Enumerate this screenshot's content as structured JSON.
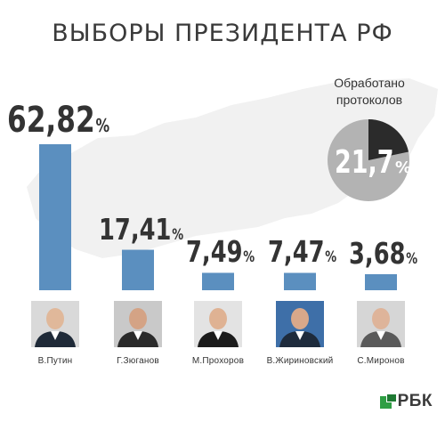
{
  "title": "ВЫБОРЫ ПРЕЗИДЕНТА РФ",
  "processed": {
    "label_line1": "Обработано",
    "label_line2": "протоколов",
    "value": 21.7,
    "value_text": "21,7",
    "percent_sign": "%"
  },
  "colors": {
    "bar": "#5b8fbf",
    "pie_done": "#2b2b2b",
    "pie_rest": "#b3b3b3",
    "map": "#f1f1f1"
  },
  "candidates": [
    {
      "name": "В.Путин",
      "value_text": "62,82",
      "photo_icon": "portrait-putin"
    },
    {
      "name": "Г.Зюганов",
      "value_text": "17,41",
      "photo_icon": "portrait-zyuganov"
    },
    {
      "name": "М.Прохоров",
      "value_text": "7,49",
      "photo_icon": "portrait-prokhorov"
    },
    {
      "name": "В.Жириновский",
      "value_text": "7,47",
      "photo_icon": "portrait-zhirinovsky"
    },
    {
      "name": "С.Миронов",
      "value_text": "3,68",
      "photo_icon": "portrait-mironov"
    }
  ],
  "percent_sign": "%",
  "logo": {
    "text": "РБК",
    "icon": "rbc-logo-icon"
  },
  "chart_data": {
    "type": "bar",
    "categories": [
      "В.Путин",
      "Г.Зюганов",
      "М.Прохоров",
      "В.Жириновский",
      "С.Миронов"
    ],
    "values": [
      62.82,
      17.41,
      7.49,
      7.47,
      3.68
    ],
    "unit": "%",
    "title": "ВЫБОРЫ ПРЕЗИДЕНТА РФ",
    "pie": {
      "label": "Обработано протоколов",
      "value": 21.7,
      "unit": "%"
    }
  }
}
